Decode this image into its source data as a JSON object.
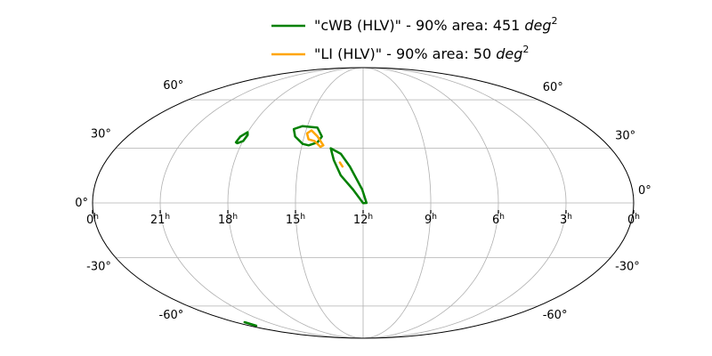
{
  "chart_data": {
    "type": "line",
    "projection": "mollweide",
    "grid": true,
    "legend_placement": "top-center",
    "ra_ticks": [
      {
        "hours": 24,
        "label": "0",
        "sup": "h"
      },
      {
        "hours": 21,
        "label": "21",
        "sup": "h"
      },
      {
        "hours": 18,
        "label": "18",
        "sup": "h"
      },
      {
        "hours": 15,
        "label": "15",
        "sup": "h"
      },
      {
        "hours": 12,
        "label": "12",
        "sup": "h"
      },
      {
        "hours": 9,
        "label": "9",
        "sup": "h"
      },
      {
        "hours": 6,
        "label": "6",
        "sup": "h"
      },
      {
        "hours": 3,
        "label": "3",
        "sup": "h"
      },
      {
        "hours": 0,
        "label": "0",
        "sup": "h"
      }
    ],
    "dec_ticks": [
      {
        "deg": 60,
        "label": "60°"
      },
      {
        "deg": 30,
        "label": "30°"
      },
      {
        "deg": 0,
        "label": "0°"
      },
      {
        "deg": -30,
        "label": "-30°"
      },
      {
        "deg": -60,
        "label": "-60°"
      }
    ],
    "series": [
      {
        "name": "cWB (HLV)",
        "legend_text": "\"cWB (HLV)\" - 90% area: 451 ",
        "legend_unit": "deg",
        "legend_exp": "2",
        "area_deg2": 451,
        "color": "#008000",
        "contours": [
          {
            "closed": true,
            "points": [
              [
                13.57,
                30
              ],
              [
                13.06,
                26.8
              ],
              [
                12.61,
                19.8
              ],
              [
                12.04,
                7.2
              ],
              [
                11.85,
                0
              ],
              [
                12.0,
                -0.1
              ],
              [
                12.45,
                7.2
              ],
              [
                13.01,
                14.9
              ],
              [
                13.37,
                23.3
              ],
              [
                13.57,
                30
              ]
            ]
          },
          {
            "closed": true,
            "points": [
              [
                15.67,
                41.2
              ],
              [
                15.26,
                43.0
              ],
              [
                14.44,
                42.1
              ],
              [
                14.1,
                36.8
              ],
              [
                14.26,
                33.4
              ],
              [
                14.67,
                31.7
              ],
              [
                14.98,
                32.5
              ],
              [
                15.46,
                36.8
              ]
            ]
          },
          {
            "closed": true,
            "points": [
              [
                18.31,
                33.4
              ],
              [
                18.25,
                36.8
              ],
              [
                18.01,
                39.3
              ],
              [
                17.92,
                37.7
              ],
              [
                17.98,
                34.2
              ],
              [
                18.22,
                32.9
              ]
            ]
          },
          {
            "closed": false,
            "points": [
              [
                23.15,
                -72.2
              ],
              [
                23.3,
                -75.2
              ]
            ]
          }
        ]
      },
      {
        "name": "LI (HLV)",
        "legend_text": "\"LI (HLV)\" - 90% area: 50 ",
        "legend_unit": "deg",
        "legend_exp": "2",
        "area_deg2": 50,
        "color": "#FFA500",
        "contours": [
          {
            "closed": true,
            "points": [
              [
                14.9,
                38.6
              ],
              [
                14.71,
                40.4
              ],
              [
                14.32,
                36.8
              ],
              [
                13.95,
                31.7
              ],
              [
                14.08,
                30.8
              ],
              [
                14.43,
                34.2
              ],
              [
                14.74,
                35.1
              ]
            ]
          },
          {
            "closed": false,
            "points": [
              [
                13.08,
                22.0
              ],
              [
                12.95,
                19.8
              ]
            ]
          }
        ]
      }
    ]
  }
}
